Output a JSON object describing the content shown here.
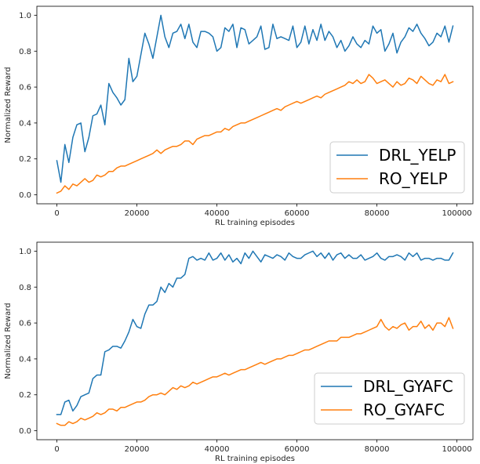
{
  "chart_data": [
    {
      "type": "line",
      "title": "",
      "xlabel": "RL training episodes",
      "ylabel": "Normalized Reward",
      "xlim": [
        -5000,
        104000
      ],
      "ylim": [
        -0.05,
        1.05
      ],
      "xticks": [
        0,
        20000,
        40000,
        60000,
        80000,
        100000
      ],
      "xtick_labels": [
        "0",
        "20000",
        "40000",
        "60000",
        "80000",
        "100000"
      ],
      "yticks": [
        0.0,
        0.2,
        0.4,
        0.6,
        0.8,
        1.0
      ],
      "ytick_labels": [
        "0.0",
        "0.2",
        "0.4",
        "0.6",
        "0.8",
        "1.0"
      ],
      "grid": false,
      "legend_position": "lower-right",
      "x": [
        0,
        1000,
        2000,
        3000,
        4000,
        5000,
        6000,
        7000,
        8000,
        9000,
        10000,
        11000,
        12000,
        13000,
        14000,
        15000,
        16000,
        17000,
        18000,
        19000,
        20000,
        21000,
        22000,
        23000,
        24000,
        25000,
        26000,
        27000,
        28000,
        29000,
        30000,
        31000,
        32000,
        33000,
        34000,
        35000,
        36000,
        37000,
        38000,
        39000,
        40000,
        41000,
        42000,
        43000,
        44000,
        45000,
        46000,
        47000,
        48000,
        49000,
        50000,
        51000,
        52000,
        53000,
        54000,
        55000,
        56000,
        57000,
        58000,
        59000,
        60000,
        61000,
        62000,
        63000,
        64000,
        65000,
        66000,
        67000,
        68000,
        69000,
        70000,
        71000,
        72000,
        73000,
        74000,
        75000,
        76000,
        77000,
        78000,
        79000,
        80000,
        81000,
        82000,
        83000,
        84000,
        85000,
        86000,
        87000,
        88000,
        89000,
        90000,
        91000,
        92000,
        93000,
        94000,
        95000,
        96000,
        97000,
        98000,
        99000
      ],
      "series": [
        {
          "name": "DRL_YELP",
          "color": "#1f77b4",
          "values": [
            0.19,
            0.07,
            0.28,
            0.18,
            0.32,
            0.39,
            0.4,
            0.24,
            0.32,
            0.44,
            0.45,
            0.5,
            0.39,
            0.62,
            0.57,
            0.54,
            0.5,
            0.53,
            0.76,
            0.63,
            0.66,
            0.78,
            0.9,
            0.84,
            0.76,
            0.88,
            1.0,
            0.88,
            0.82,
            0.9,
            0.91,
            0.95,
            0.87,
            0.95,
            0.85,
            0.82,
            0.91,
            0.91,
            0.9,
            0.88,
            0.8,
            0.82,
            0.93,
            0.91,
            0.95,
            0.82,
            0.93,
            0.92,
            0.84,
            0.86,
            0.88,
            0.94,
            0.81,
            0.82,
            0.95,
            0.87,
            0.88,
            0.87,
            0.86,
            0.94,
            0.82,
            0.85,
            0.94,
            0.84,
            0.92,
            0.86,
            0.95,
            0.86,
            0.91,
            0.88,
            0.82,
            0.86,
            0.8,
            0.83,
            0.88,
            0.84,
            0.82,
            0.86,
            0.84,
            0.94,
            0.9,
            0.92,
            0.8,
            0.84,
            0.9,
            0.79,
            0.85,
            0.88,
            0.93,
            0.91,
            0.95,
            0.9,
            0.87,
            0.83,
            0.85,
            0.9,
            0.88,
            0.94,
            0.85,
            0.94
          ]
        },
        {
          "name": "RO_YELP",
          "color": "#ff7f0e",
          "values": [
            0.01,
            0.02,
            0.05,
            0.03,
            0.06,
            0.05,
            0.07,
            0.09,
            0.07,
            0.08,
            0.11,
            0.1,
            0.11,
            0.13,
            0.13,
            0.15,
            0.16,
            0.16,
            0.17,
            0.18,
            0.19,
            0.2,
            0.21,
            0.22,
            0.23,
            0.25,
            0.23,
            0.25,
            0.26,
            0.27,
            0.27,
            0.28,
            0.3,
            0.3,
            0.28,
            0.31,
            0.32,
            0.33,
            0.33,
            0.34,
            0.35,
            0.35,
            0.37,
            0.36,
            0.38,
            0.39,
            0.4,
            0.4,
            0.41,
            0.42,
            0.43,
            0.44,
            0.45,
            0.46,
            0.47,
            0.48,
            0.47,
            0.49,
            0.5,
            0.51,
            0.52,
            0.51,
            0.52,
            0.53,
            0.54,
            0.55,
            0.54,
            0.56,
            0.57,
            0.58,
            0.59,
            0.6,
            0.61,
            0.63,
            0.62,
            0.64,
            0.62,
            0.63,
            0.67,
            0.65,
            0.62,
            0.63,
            0.64,
            0.62,
            0.6,
            0.63,
            0.61,
            0.62,
            0.65,
            0.64,
            0.62,
            0.66,
            0.64,
            0.62,
            0.61,
            0.64,
            0.63,
            0.67,
            0.62,
            0.63
          ]
        }
      ]
    },
    {
      "type": "line",
      "title": "",
      "xlabel": "RL training episodes",
      "ylabel": "Normalized Reward",
      "xlim": [
        -5000,
        104000
      ],
      "ylim": [
        -0.05,
        1.05
      ],
      "xticks": [
        0,
        20000,
        40000,
        60000,
        80000,
        100000
      ],
      "xtick_labels": [
        "0",
        "20000",
        "40000",
        "60000",
        "80000",
        "100000"
      ],
      "yticks": [
        0.0,
        0.2,
        0.4,
        0.6,
        0.8,
        1.0
      ],
      "ytick_labels": [
        "0.0",
        "0.2",
        "0.4",
        "0.6",
        "0.8",
        "1.0"
      ],
      "grid": false,
      "legend_position": "lower-right",
      "x": [
        0,
        1000,
        2000,
        3000,
        4000,
        5000,
        6000,
        7000,
        8000,
        9000,
        10000,
        11000,
        12000,
        13000,
        14000,
        15000,
        16000,
        17000,
        18000,
        19000,
        20000,
        21000,
        22000,
        23000,
        24000,
        25000,
        26000,
        27000,
        28000,
        29000,
        30000,
        31000,
        32000,
        33000,
        34000,
        35000,
        36000,
        37000,
        38000,
        39000,
        40000,
        41000,
        42000,
        43000,
        44000,
        45000,
        46000,
        47000,
        48000,
        49000,
        50000,
        51000,
        52000,
        53000,
        54000,
        55000,
        56000,
        57000,
        58000,
        59000,
        60000,
        61000,
        62000,
        63000,
        64000,
        65000,
        66000,
        67000,
        68000,
        69000,
        70000,
        71000,
        72000,
        73000,
        74000,
        75000,
        76000,
        77000,
        78000,
        79000,
        80000,
        81000,
        82000,
        83000,
        84000,
        85000,
        86000,
        87000,
        88000,
        89000,
        90000,
        91000,
        92000,
        93000,
        94000,
        95000,
        96000,
        97000,
        98000,
        99000
      ],
      "series": [
        {
          "name": "DRL_GYAFC",
          "color": "#1f77b4",
          "values": [
            0.09,
            0.09,
            0.16,
            0.17,
            0.11,
            0.14,
            0.19,
            0.2,
            0.21,
            0.29,
            0.31,
            0.31,
            0.44,
            0.45,
            0.47,
            0.47,
            0.46,
            0.5,
            0.55,
            0.62,
            0.58,
            0.57,
            0.65,
            0.7,
            0.7,
            0.72,
            0.8,
            0.77,
            0.82,
            0.8,
            0.85,
            0.85,
            0.87,
            0.96,
            0.97,
            0.95,
            0.96,
            0.95,
            0.99,
            0.95,
            0.96,
            0.99,
            0.95,
            0.98,
            0.94,
            0.96,
            0.93,
            0.99,
            0.96,
            1.0,
            0.97,
            0.94,
            0.98,
            0.97,
            0.96,
            0.98,
            0.97,
            0.95,
            0.99,
            0.97,
            0.96,
            0.96,
            0.98,
            0.99,
            1.0,
            0.97,
            0.99,
            0.96,
            0.99,
            0.95,
            0.98,
            0.99,
            0.96,
            0.98,
            0.96,
            0.96,
            0.98,
            0.95,
            0.96,
            0.97,
            0.99,
            0.96,
            0.95,
            0.97,
            0.97,
            0.98,
            0.97,
            0.95,
            0.99,
            0.97,
            0.99,
            0.95,
            0.96,
            0.96,
            0.95,
            0.96,
            0.96,
            0.95,
            0.95,
            0.99
          ]
        },
        {
          "name": "RO_GYAFC",
          "color": "#ff7f0e",
          "values": [
            0.04,
            0.03,
            0.03,
            0.05,
            0.04,
            0.05,
            0.07,
            0.06,
            0.07,
            0.08,
            0.1,
            0.09,
            0.1,
            0.12,
            0.12,
            0.11,
            0.13,
            0.13,
            0.14,
            0.15,
            0.16,
            0.16,
            0.17,
            0.19,
            0.2,
            0.2,
            0.21,
            0.2,
            0.22,
            0.24,
            0.23,
            0.25,
            0.24,
            0.25,
            0.27,
            0.26,
            0.27,
            0.28,
            0.29,
            0.3,
            0.3,
            0.31,
            0.32,
            0.31,
            0.32,
            0.33,
            0.34,
            0.34,
            0.35,
            0.36,
            0.37,
            0.38,
            0.37,
            0.38,
            0.39,
            0.4,
            0.4,
            0.41,
            0.42,
            0.42,
            0.43,
            0.44,
            0.45,
            0.45,
            0.46,
            0.47,
            0.48,
            0.49,
            0.5,
            0.5,
            0.5,
            0.52,
            0.52,
            0.52,
            0.53,
            0.54,
            0.54,
            0.55,
            0.56,
            0.57,
            0.58,
            0.62,
            0.58,
            0.56,
            0.58,
            0.57,
            0.59,
            0.6,
            0.56,
            0.58,
            0.58,
            0.61,
            0.57,
            0.59,
            0.56,
            0.6,
            0.6,
            0.58,
            0.63,
            0.57
          ]
        }
      ]
    }
  ]
}
